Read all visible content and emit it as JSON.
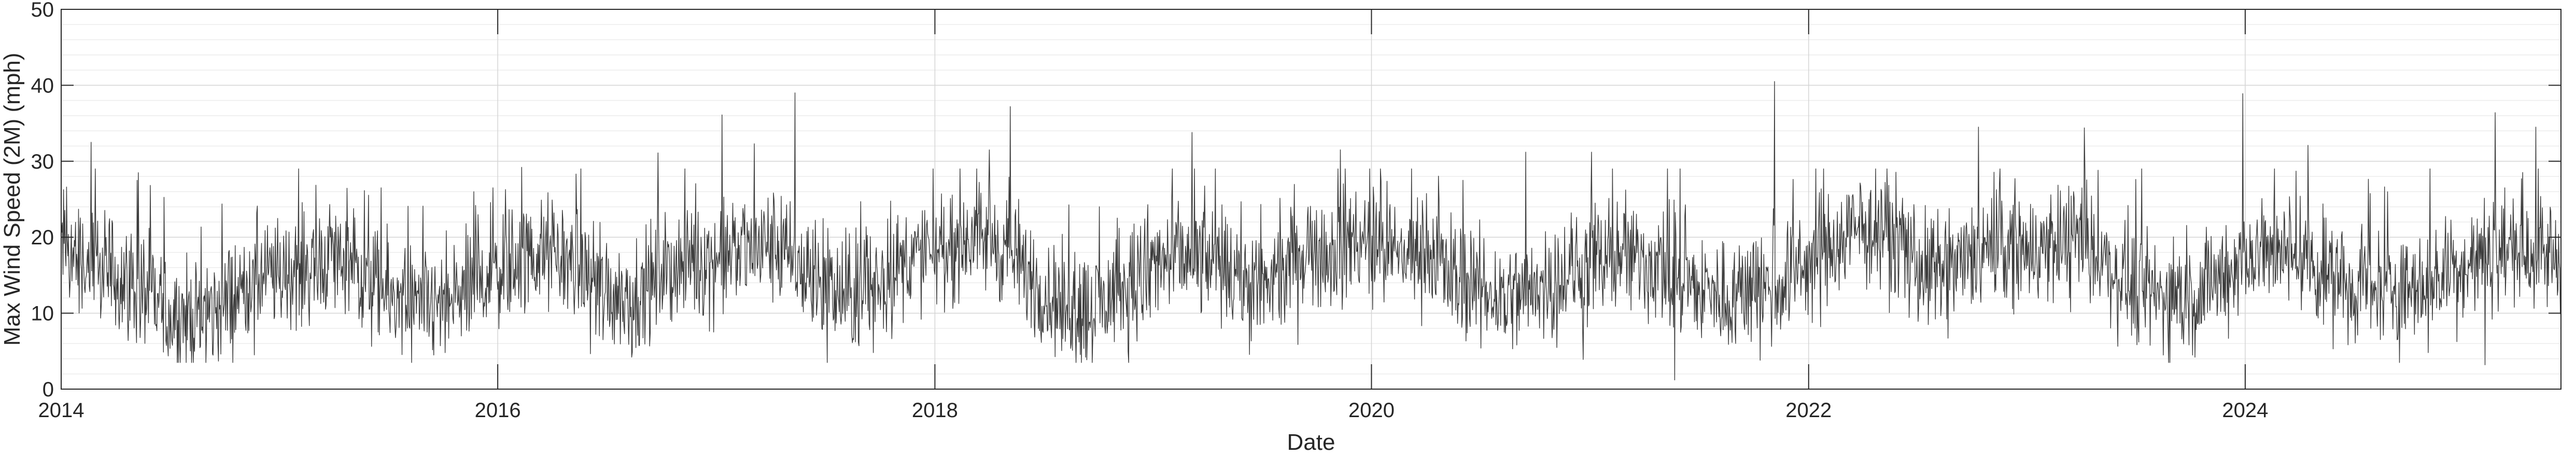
{
  "chart_data": {
    "type": "line",
    "title": "",
    "xlabel": "Date",
    "ylabel": "Max Wind Speed (2M) (mph)",
    "x_ticks": [
      "2014",
      "2016",
      "2018",
      "2020",
      "2022",
      "2024"
    ],
    "y_ticks": [
      "0",
      "10",
      "20",
      "30",
      "40",
      "50"
    ],
    "xlim": [
      "2014-01-01",
      "2025-06-12"
    ],
    "ylim": [
      0,
      50
    ],
    "grid": true,
    "minor_grid": true,
    "line_color": "#3c3c3c",
    "series": [
      {
        "x": [
          "2014-01-01",
          "2014-02-15",
          "2014-04-01",
          "2014-05-15",
          "2014-07-01",
          "2014-08-15",
          "2014-10-01",
          "2014-11-15",
          "2015-01-01",
          "2015-02-15",
          "2015-04-01",
          "2015-05-15",
          "2015-07-01",
          "2015-08-15",
          "2015-10-01",
          "2015-11-15",
          "2016-01-01",
          "2016-02-15",
          "2016-04-01",
          "2016-05-15",
          "2016-07-01",
          "2016-08-15",
          "2016-10-01",
          "2016-11-15",
          "2017-01-01",
          "2017-02-15",
          "2017-04-01",
          "2017-05-15",
          "2017-07-01",
          "2017-08-15",
          "2017-10-01",
          "2017-11-15",
          "2018-01-01",
          "2018-02-15",
          "2018-04-01",
          "2018-05-15",
          "2018-07-01",
          "2018-08-15",
          "2018-10-01",
          "2018-11-15",
          "2019-01-01",
          "2019-02-15",
          "2019-04-01",
          "2019-05-15",
          "2019-07-01",
          "2019-08-15",
          "2019-10-01",
          "2019-11-15",
          "2020-01-01",
          "2020-02-15",
          "2020-04-01",
          "2020-05-15",
          "2020-07-01",
          "2020-08-15",
          "2020-10-01",
          "2020-11-15",
          "2021-01-01",
          "2021-02-15",
          "2021-04-01",
          "2021-05-15",
          "2021-07-01",
          "2021-08-15",
          "2021-10-01",
          "2021-11-15",
          "2022-01-01",
          "2022-02-15",
          "2022-04-01",
          "2022-05-15",
          "2022-07-01",
          "2022-08-15",
          "2022-10-01",
          "2022-11-15",
          "2023-01-01",
          "2023-02-15",
          "2023-04-01",
          "2023-05-15",
          "2023-07-01",
          "2023-08-15",
          "2023-10-01",
          "2023-11-15",
          "2024-01-01",
          "2024-02-15",
          "2024-04-01",
          "2024-05-15",
          "2024-07-01",
          "2024-08-15",
          "2024-10-01",
          "2024-11-15",
          "2025-01-01",
          "2025-02-15",
          "2025-04-01",
          "2025-05-15",
          "2025-06-12"
        ],
        "y": [
          19,
          16,
          15,
          13,
          10,
          9,
          11,
          14,
          15,
          16,
          18,
          15,
          12,
          10,
          11,
          13,
          16,
          17,
          18,
          16,
          13,
          12,
          15,
          17,
          17,
          18,
          19,
          16,
          13,
          12,
          14,
          17,
          18,
          20,
          20,
          17,
          13,
          10,
          11,
          13,
          16,
          17,
          17,
          15,
          13,
          15,
          18,
          19,
          19,
          18,
          18,
          15,
          13,
          12,
          13,
          15,
          16,
          17,
          17,
          15,
          13,
          12,
          14,
          14,
          16,
          19,
          21,
          20,
          16,
          15,
          17,
          19,
          18,
          19,
          19,
          16,
          14,
          12,
          12,
          14,
          17,
          18,
          18,
          15,
          13,
          13,
          13,
          15,
          16,
          18,
          19,
          18,
          17
        ],
        "peaks": [
          {
            "x": "2014-02-20",
            "y": 32.5
          },
          {
            "x": "2014-05-10",
            "y": 28.5
          },
          {
            "x": "2015-06-20",
            "y": 26.5
          },
          {
            "x": "2016-02-10",
            "y": 29.2
          },
          {
            "x": "2016-09-25",
            "y": 31.1
          },
          {
            "x": "2017-01-10",
            "y": 36.1
          },
          {
            "x": "2017-03-05",
            "y": 32.3
          },
          {
            "x": "2017-05-12",
            "y": 39.0
          },
          {
            "x": "2018-05-07",
            "y": 37.2
          },
          {
            "x": "2018-04-02",
            "y": 31.5
          },
          {
            "x": "2019-03-07",
            "y": 33.8
          },
          {
            "x": "2019-11-10",
            "y": 31.5
          },
          {
            "x": "2020-09-15",
            "y": 31.2
          },
          {
            "x": "2021-01-03",
            "y": 31.2
          },
          {
            "x": "2021-11-05",
            "y": 40.5
          },
          {
            "x": "2022-10-12",
            "y": 34.5
          },
          {
            "x": "2023-04-07",
            "y": 34.4
          },
          {
            "x": "2023-12-28",
            "y": 38.9
          },
          {
            "x": "2024-04-15",
            "y": 32.1
          },
          {
            "x": "2025-02-22",
            "y": 36.4
          },
          {
            "x": "2025-05-01",
            "y": 34.5
          }
        ],
        "troughs": [
          {
            "x": "2014-11-20",
            "y": 4.5
          },
          {
            "x": "2015-10-05",
            "y": 4.8
          },
          {
            "x": "2017-09-20",
            "y": 4.8
          },
          {
            "x": "2018-09-10",
            "y": 4.2
          },
          {
            "x": "2020-12-20",
            "y": 3.9
          },
          {
            "x": "2021-05-22",
            "y": 1.2
          },
          {
            "x": "2021-10-12",
            "y": 3.8
          },
          {
            "x": "2023-10-09",
            "y": 4.2
          },
          {
            "x": "2024-11-02",
            "y": 4.8
          },
          {
            "x": "2025-02-05",
            "y": 3.2
          }
        ]
      }
    ]
  }
}
